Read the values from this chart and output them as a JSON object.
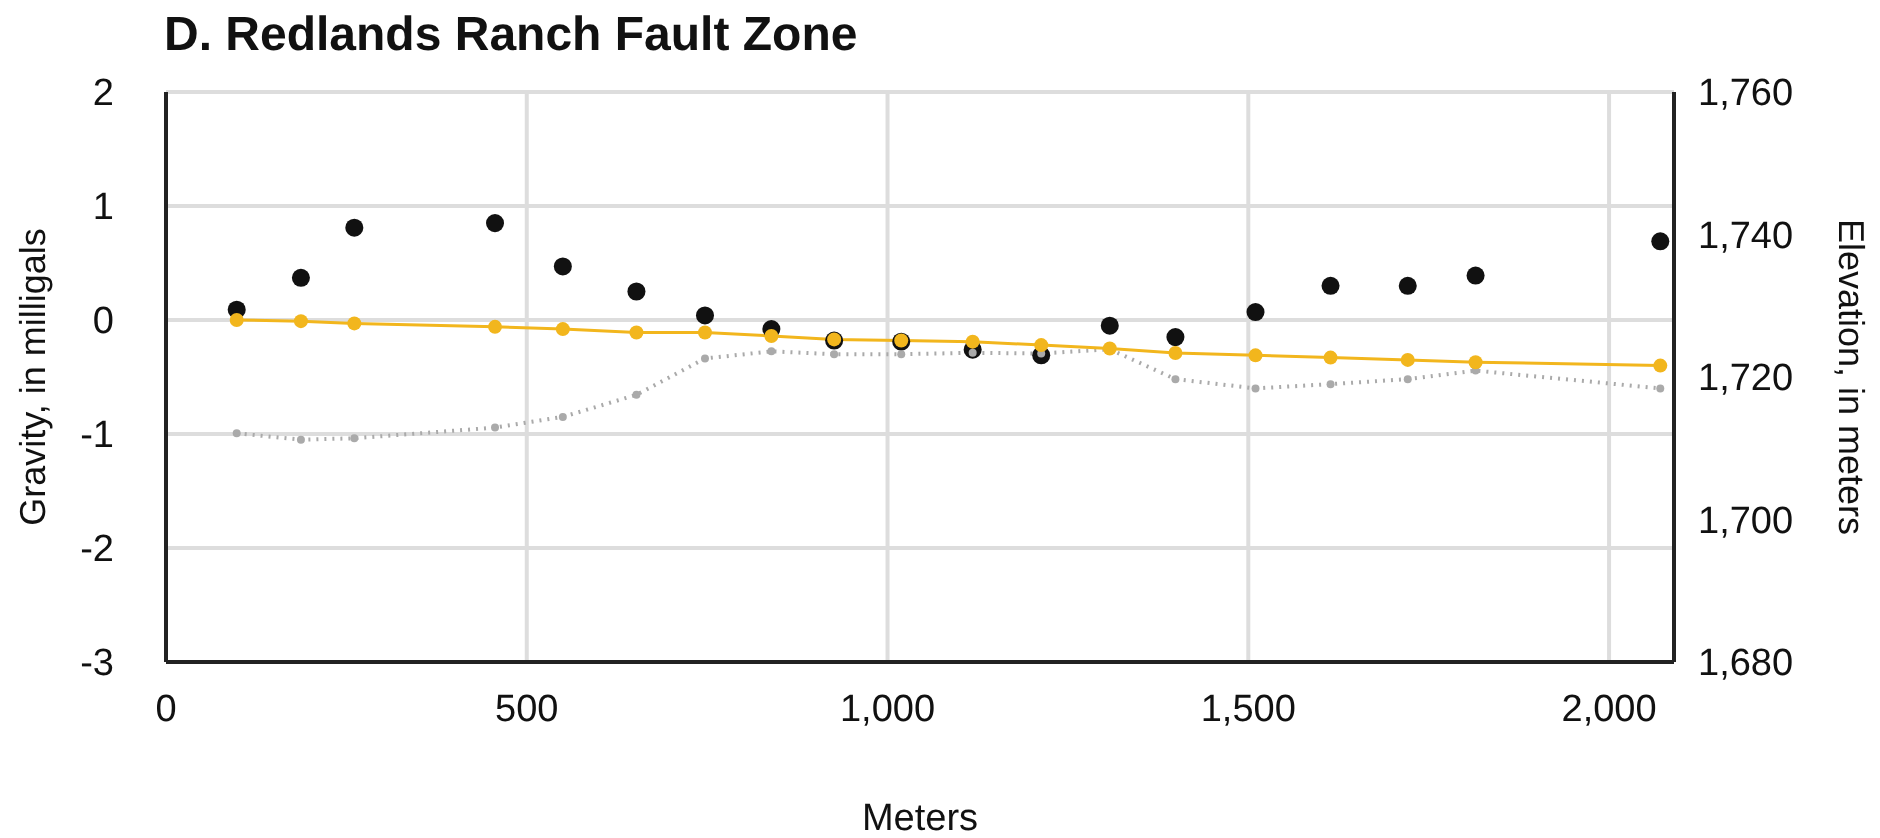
{
  "chart_data": {
    "type": "scatter",
    "title": "D. Redlands Ranch Fault Zone",
    "xlabel": "Meters",
    "ylabel": "Gravity, in milligals",
    "y2label": "Elevation, in meters",
    "x": [
      98,
      187,
      261,
      456,
      550,
      652,
      747,
      839,
      926,
      1019,
      1118,
      1213,
      1308,
      1399,
      1510,
      1614,
      1721,
      1815,
      2071
    ],
    "series": [
      {
        "color": "#111111",
        "values": [
          0.09,
          0.37,
          0.81,
          0.85,
          0.47,
          0.25,
          0.04,
          -0.08,
          -0.18,
          -0.19,
          -0.26,
          -0.31,
          -0.05,
          -0.15,
          0.07,
          0.3,
          0.3,
          0.39,
          0.69
        ]
      },
      {
        "type": "line",
        "color": "#aaaaaa",
        "axis": "y2",
        "line_style": "dotted",
        "values": [
          1712.1,
          1711.2,
          1711.4,
          1712.9,
          1714.4,
          1717.5,
          1722.6,
          1723.6,
          1723.2,
          1723.2,
          1723.4,
          1723.3,
          1723.9,
          1719.7,
          1718.4,
          1719.0,
          1719.7,
          1720.9,
          1718.4
        ]
      },
      {
        "type": "line",
        "color": "#f2b61d",
        "line_style": "solid",
        "values": [
          0.0,
          -0.01,
          -0.03,
          -0.06,
          -0.08,
          -0.11,
          -0.11,
          -0.14,
          -0.17,
          -0.18,
          -0.19,
          -0.22,
          -0.25,
          -0.29,
          -0.31,
          -0.33,
          -0.35,
          -0.37,
          -0.4
        ]
      }
    ],
    "xlim": [
      0,
      2090
    ],
    "xticks": [
      0,
      500,
      {
        "value": 1000,
        "label": "1,000"
      },
      {
        "value": 1500,
        "label": "1,500"
      },
      {
        "value": 2000,
        "label": "2,000"
      }
    ],
    "ylim": [
      -3,
      2
    ],
    "yticks": [
      -3,
      -2,
      -1,
      0,
      1,
      2
    ],
    "y2lim": [
      1680,
      1760
    ],
    "y2ticks": [
      {
        "value": 1680,
        "label": "1,680"
      },
      {
        "value": 1700,
        "label": "1,700"
      },
      {
        "value": 1720,
        "label": "1,720"
      },
      {
        "value": 1740,
        "label": "1,740"
      },
      {
        "value": 1760,
        "label": "1,760"
      }
    ],
    "grid": true,
    "marker": "circle",
    "legend": false
  }
}
